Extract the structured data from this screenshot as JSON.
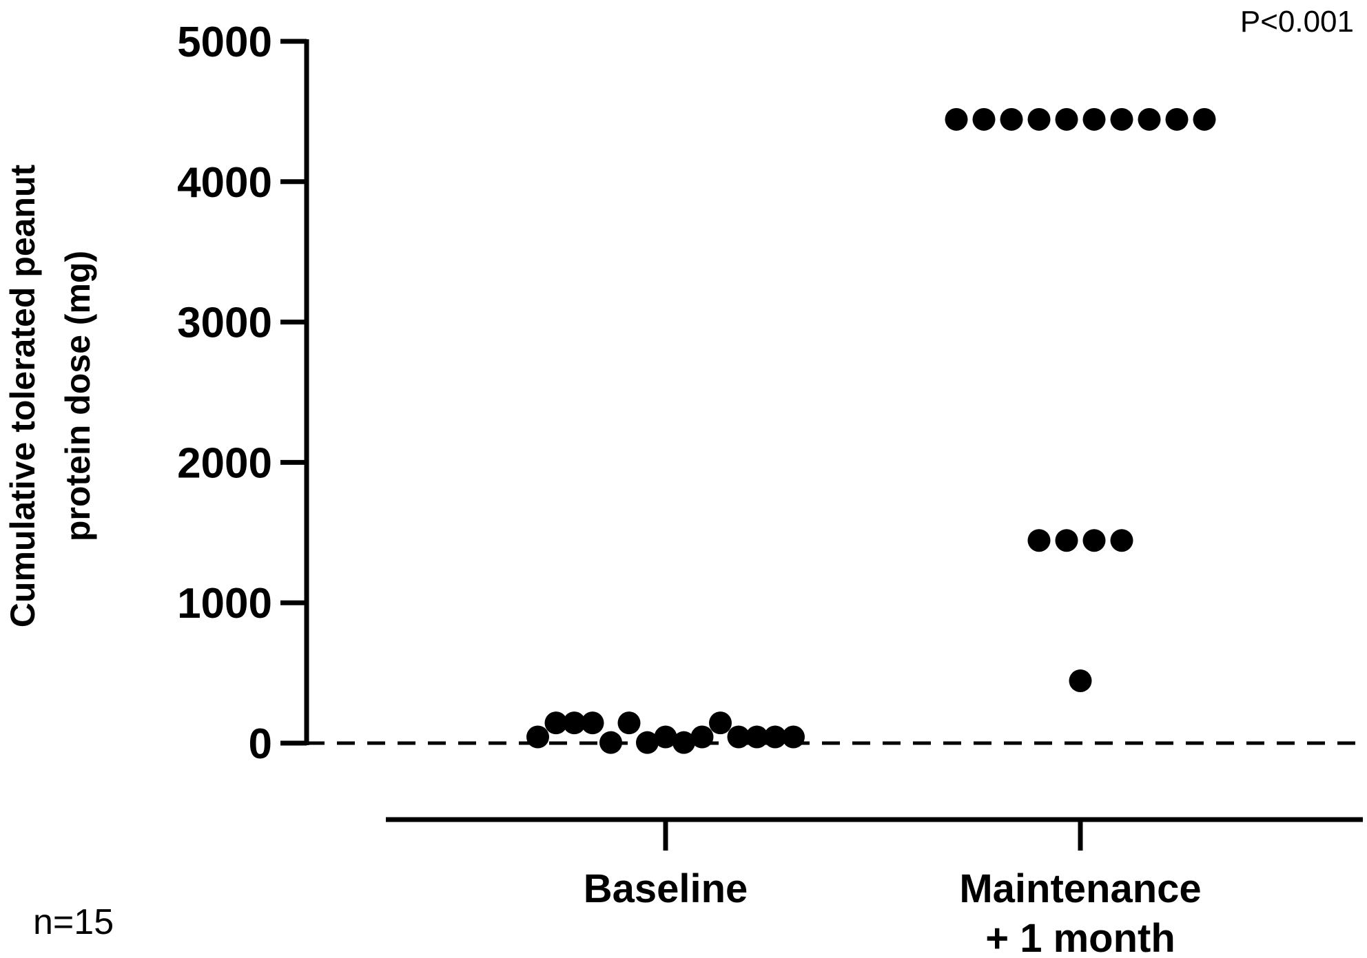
{
  "chart_data": {
    "type": "scatter",
    "ylabel_lines": [
      "Cumulative tolerated peanut",
      "protein dose (mg)"
    ],
    "ylim": [
      0,
      5000
    ],
    "yticks": [
      0,
      1000,
      2000,
      3000,
      4000,
      5000
    ],
    "ytick_labels": [
      "0",
      "1000",
      "2000",
      "3000",
      "4000",
      "5000"
    ],
    "categories": [
      {
        "lines": [
          "Baseline"
        ]
      },
      {
        "lines": [
          "Maintenance",
          "+ 1 month"
        ]
      }
    ],
    "reference_line": {
      "y": 0,
      "style": "dashed"
    },
    "annotation_p": "P<0.001",
    "annotation_n": "n=15",
    "series": [
      {
        "category": "Baseline",
        "values": [
          44,
          144,
          144,
          144,
          4,
          144,
          4,
          44,
          4,
          44,
          144,
          44,
          44,
          44,
          44
        ]
      },
      {
        "category": "Maintenance + 1 month",
        "values": [
          4444,
          4444,
          4444,
          4444,
          4444,
          4444,
          4444,
          4444,
          4444,
          4444,
          1444,
          1444,
          1444,
          1444,
          444
        ]
      }
    ],
    "grid": false,
    "legend": "none",
    "marker_color": "#000000"
  }
}
